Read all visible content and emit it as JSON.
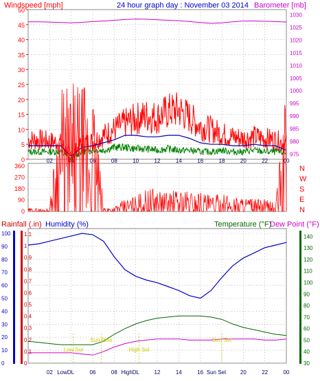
{
  "header": {
    "title": "24 hour graph day : November 03 2014",
    "left_label": "Windspeed [mph]",
    "right_label": "Barometer [mb]"
  },
  "colors": {
    "windspeed": "#ff0000",
    "wind_avg": "#0000aa",
    "wind_low": "#008000",
    "barometer": "#cc00cc",
    "rain_axis": "#cc0000",
    "humidity": "#0000cc",
    "temperature": "#006600",
    "dewpoint": "#cc00cc",
    "sun_markers": "#cccc00",
    "frame": "#888888"
  },
  "wind_panel": {
    "left_ticks": [
      "0",
      "5",
      "10",
      "15",
      "20",
      "25",
      "30",
      "35",
      "40",
      "45",
      "50"
    ],
    "right_ticks": [
      "975",
      "980",
      "985",
      "990",
      "995",
      "1000",
      "1005",
      "1010",
      "1015",
      "1020",
      "1025",
      "1030"
    ],
    "x_ticks": [
      "02",
      "04",
      "06",
      "08",
      "10",
      "12",
      "14",
      "16",
      "18",
      "20",
      "22",
      "00"
    ]
  },
  "direction_panel": {
    "left_ticks": [
      "0",
      "90",
      "180",
      "270",
      "360"
    ],
    "right_ticks": [
      "N",
      "W",
      "S",
      "E",
      "N"
    ]
  },
  "lower_panel": {
    "rain_label": "Rainfall (.in)",
    "humidity_label": "Humidity (%)",
    "temp_label": "Temperature (°F)",
    "dew_label": "Dew Point (°F)",
    "humidity_ticks": [
      "0",
      "10",
      "20",
      "30",
      "40",
      "50",
      "60",
      "70",
      "80",
      "90",
      "100"
    ],
    "rain_ticks": [
      "0",
      "0.1",
      "0.2",
      "0.3",
      "0.4",
      "0.5",
      "0.6",
      "0.7",
      "0.8",
      "0.9",
      "1",
      "1.1"
    ],
    "temp_ticks": [
      "30",
      "40",
      "50",
      "60",
      "70",
      "80",
      "90",
      "100",
      "110",
      "120",
      "130",
      "140"
    ],
    "x_ticks": [
      "02",
      "LowDL",
      "06",
      "08",
      "HighDL",
      "12",
      "14",
      "16",
      "Sun Set",
      "20",
      "22",
      "00"
    ],
    "lowdl_label": "Low",
    "lowdl_suffix": "06",
    "highdl_label": "High",
    "highdl_suffix": "08",
    "sunset_label": "Sun Set",
    "sunset_suffix": "18",
    "markers": [
      "Low Sol",
      "Sun Rise",
      "High Sol",
      "Sun Set"
    ]
  },
  "chart_data": [
    {
      "type": "line",
      "title": "24 hour graph day : November 03 2014",
      "xlabel": "",
      "ylabel": "Windspeed [mph]",
      "ylim": [
        0,
        50
      ],
      "y2label": "Barometer [mb]",
      "y2lim": [
        973,
        1032
      ],
      "x": [
        0,
        1,
        2,
        3,
        4,
        5,
        6,
        7,
        8,
        9,
        10,
        11,
        12,
        13,
        14,
        15,
        16,
        17,
        18,
        19,
        20,
        21,
        22,
        23,
        24
      ],
      "series": [
        {
          "name": "Windspeed",
          "axis": "left",
          "values": [
            6.5,
            6.5,
            6,
            5.5,
            1,
            5.5,
            6,
            8,
            10,
            12,
            13.5,
            14.5,
            14,
            16,
            16.5,
            14,
            11,
            10,
            8.5,
            7.5,
            7,
            7.5,
            7,
            6.5,
            5
          ]
        },
        {
          "name": "Windspeed Avg",
          "axis": "left",
          "values": [
            4.5,
            4.5,
            4.5,
            4.5,
            1,
            4,
            4.5,
            5.5,
            6.5,
            8,
            8,
            7.5,
            7.5,
            8,
            8,
            7,
            5.5,
            5,
            5,
            4.5,
            4.5,
            5,
            4.5,
            4.5,
            3
          ]
        },
        {
          "name": "Windspeed Low",
          "axis": "left",
          "values": [
            2.5,
            2.5,
            2.5,
            2.5,
            0,
            2.5,
            3,
            3,
            4,
            4,
            3.5,
            3.5,
            3,
            3.5,
            3,
            3,
            2.5,
            2.5,
            3,
            2.5,
            2.5,
            3,
            2.5,
            2.5,
            2
          ]
        },
        {
          "name": "Barometer",
          "axis": "right",
          "values": [
            1027.2,
            1027.2,
            1027.1,
            1026.9,
            1026.8,
            1027,
            1027.3,
            1027.5,
            1027.8,
            1028.1,
            1028.3,
            1028.2,
            1028,
            1027.8,
            1027.6,
            1027.3,
            1026.9,
            1026.6,
            1026.8,
            1027.2,
            1027.5,
            1027.5,
            1027.4,
            1027.3,
            1027.1
          ]
        }
      ]
    },
    {
      "type": "line",
      "title": "",
      "ylabel": "",
      "ylim": [
        0,
        360
      ],
      "x": [
        0,
        1,
        2,
        3,
        4,
        5,
        6,
        7,
        8,
        9,
        10,
        11,
        12,
        13,
        14,
        15,
        16,
        17,
        18,
        19,
        20,
        21,
        22,
        23,
        24
      ],
      "series": [
        {
          "name": "Wind Direction",
          "values": [
            5,
            5,
            5,
            350,
            355,
            355,
            350,
            10,
            10,
            30,
            40,
            60,
            60,
            50,
            60,
            55,
            55,
            40,
            45,
            40,
            40,
            30,
            30,
            20,
            355
          ]
        }
      ]
    },
    {
      "type": "line",
      "title": "",
      "ylabel": "Humidity (%)",
      "ylim": [
        0,
        100
      ],
      "y2label": "Temperature (°F)",
      "y2lim": [
        30,
        145
      ],
      "x": [
        0,
        1,
        2,
        3,
        4,
        5,
        6,
        7,
        8,
        9,
        10,
        11,
        12,
        13,
        14,
        15,
        16,
        17,
        18,
        19,
        20,
        21,
        22,
        23,
        24
      ],
      "series": [
        {
          "name": "Humidity",
          "axis": "left",
          "values": [
            91,
            92,
            94,
            96,
            98,
            100,
            99,
            94,
            82,
            72,
            67,
            64,
            62,
            59,
            56,
            52,
            50,
            56,
            66,
            75,
            81,
            85,
            89,
            91,
            93
          ]
        },
        {
          "name": "Temperature",
          "axis": "right",
          "values": [
            49,
            48,
            47,
            46,
            46,
            46,
            46,
            49,
            55,
            60,
            64,
            67,
            69,
            70,
            71,
            71,
            71,
            70,
            68,
            64,
            61,
            59,
            57,
            55,
            54
          ]
        },
        {
          "name": "Dew Point",
          "axis": "right",
          "values": [
            39,
            39,
            39,
            39,
            39,
            38,
            37,
            40,
            44,
            47,
            49,
            50,
            51,
            51,
            51,
            50,
            50,
            50,
            51,
            51,
            51,
            51,
            50,
            50,
            51
          ]
        }
      ]
    }
  ]
}
